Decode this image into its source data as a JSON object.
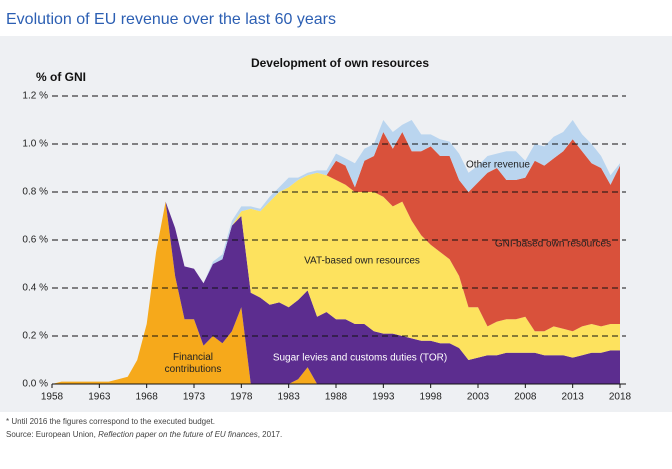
{
  "chart_data": {
    "type": "stacked_area",
    "page_title": "Evolution of EU revenue over the last 60 years",
    "title": "Development of own resources",
    "y_label": "% of GNI",
    "footnote": "* Until 2016 the figures correspond to the executed budget.",
    "source": [
      "Source: European Union, ",
      "Reflection paper on the future of EU finances",
      ", 2017."
    ],
    "x": [
      1958,
      1959,
      1960,
      1961,
      1962,
      1963,
      1964,
      1965,
      1966,
      1967,
      1968,
      1969,
      1970,
      1971,
      1972,
      1973,
      1974,
      1975,
      1976,
      1977,
      1978,
      1979,
      1980,
      1981,
      1982,
      1983,
      1984,
      1985,
      1986,
      1987,
      1988,
      1989,
      1990,
      1991,
      1992,
      1993,
      1994,
      1995,
      1996,
      1997,
      1998,
      1999,
      2000,
      2001,
      2002,
      2003,
      2004,
      2005,
      2006,
      2007,
      2008,
      2009,
      2010,
      2011,
      2012,
      2013,
      2014,
      2015,
      2016,
      2017,
      2018
    ],
    "xlim": [
      1958,
      2018
    ],
    "xticks": [
      1958,
      1963,
      1968,
      1973,
      1978,
      1983,
      1988,
      1993,
      1998,
      2003,
      2008,
      2013,
      2018
    ],
    "ylim": [
      0,
      1.2
    ],
    "yticks": [
      {
        "value": 0,
        "label": "0.0 %"
      },
      {
        "value": 0.2,
        "label": "0.2 %"
      },
      {
        "value": 0.4,
        "label": "0.4 %"
      },
      {
        "value": 0.6,
        "label": "0.6 %"
      },
      {
        "value": 0.8,
        "label": "0.8 %"
      },
      {
        "value": 1.0,
        "label": "1.0 %"
      },
      {
        "value": 1.2,
        "label": "1.2 %"
      }
    ],
    "grid": true,
    "series": [
      {
        "name": "Financial contributions",
        "color": "#f6a91b",
        "values": [
          0,
          0.01,
          0.01,
          0.01,
          0.01,
          0.01,
          0.01,
          0.02,
          0.03,
          0.1,
          0.25,
          0.55,
          0.76,
          0.45,
          0.27,
          0.27,
          0.16,
          0.2,
          0.17,
          0.22,
          0.32,
          0,
          0,
          0,
          0,
          0,
          0.02,
          0.07,
          0,
          0,
          0,
          0,
          0,
          0,
          0,
          0,
          0,
          0,
          0,
          0,
          0,
          0,
          0,
          0,
          0,
          0,
          0,
          0,
          0,
          0,
          0,
          0,
          0,
          0,
          0,
          0,
          0,
          0,
          0,
          0,
          0
        ]
      },
      {
        "name": "Sugar levies and customs duties (TOR)",
        "color": "#5c2d8f",
        "values": [
          0,
          0,
          0,
          0,
          0,
          0,
          0,
          0,
          0,
          0,
          0,
          0,
          0,
          0.2,
          0.22,
          0.21,
          0.26,
          0.3,
          0.35,
          0.44,
          0.38,
          0.38,
          0.36,
          0.33,
          0.34,
          0.32,
          0.33,
          0.32,
          0.28,
          0.3,
          0.27,
          0.27,
          0.25,
          0.25,
          0.22,
          0.21,
          0.21,
          0.2,
          0.19,
          0.18,
          0.18,
          0.17,
          0.17,
          0.15,
          0.1,
          0.11,
          0.12,
          0.12,
          0.13,
          0.13,
          0.13,
          0.13,
          0.12,
          0.12,
          0.12,
          0.11,
          0.12,
          0.13,
          0.13,
          0.14,
          0.14
        ]
      },
      {
        "name": "VAT-based own resources",
        "color": "#fde25e",
        "values": [
          0,
          0,
          0,
          0,
          0,
          0,
          0,
          0,
          0,
          0,
          0,
          0,
          0,
          0,
          0,
          0,
          0,
          0,
          0,
          0,
          0.02,
          0.35,
          0.36,
          0.43,
          0.46,
          0.5,
          0.5,
          0.48,
          0.6,
          0.57,
          0.58,
          0.56,
          0.55,
          0.55,
          0.58,
          0.57,
          0.53,
          0.56,
          0.49,
          0.44,
          0.4,
          0.38,
          0.35,
          0.3,
          0.22,
          0.21,
          0.12,
          0.14,
          0.14,
          0.14,
          0.15,
          0.09,
          0.1,
          0.12,
          0.11,
          0.11,
          0.12,
          0.12,
          0.11,
          0.11,
          0.11
        ]
      },
      {
        "name": "GNI-based own resources",
        "color": "#d9513b",
        "values": [
          0,
          0,
          0,
          0,
          0,
          0,
          0,
          0,
          0,
          0,
          0,
          0,
          0,
          0,
          0,
          0,
          0,
          0,
          0,
          0,
          0,
          0,
          0,
          0,
          0,
          0,
          0,
          0,
          0,
          0,
          0.08,
          0.08,
          0.02,
          0.13,
          0.15,
          0.27,
          0.24,
          0.29,
          0.29,
          0.35,
          0.41,
          0.4,
          0.43,
          0.4,
          0.48,
          0.52,
          0.64,
          0.64,
          0.58,
          0.58,
          0.58,
          0.71,
          0.69,
          0.7,
          0.74,
          0.8,
          0.73,
          0.67,
          0.66,
          0.58,
          0.66
        ]
      },
      {
        "name": "Other revenue",
        "color": "#bad5ef",
        "values": [
          0,
          0,
          0,
          0,
          0,
          0,
          0,
          0,
          0,
          0,
          0,
          0,
          0,
          0,
          0,
          0,
          0,
          0.01,
          0.02,
          0.02,
          0.02,
          0.01,
          0.01,
          0.02,
          0.02,
          0.04,
          0.01,
          0.01,
          0.01,
          0.02,
          0.03,
          0.03,
          0.1,
          0.05,
          0.05,
          0.05,
          0.07,
          0.03,
          0.13,
          0.07,
          0.05,
          0.07,
          0.06,
          0.11,
          0.08,
          0.07,
          0.07,
          0.06,
          0.12,
          0.12,
          0.07,
          0.07,
          0.08,
          0.09,
          0.08,
          0.08,
          0.07,
          0.08,
          0.05,
          0.04,
          0.01
        ]
      }
    ]
  }
}
